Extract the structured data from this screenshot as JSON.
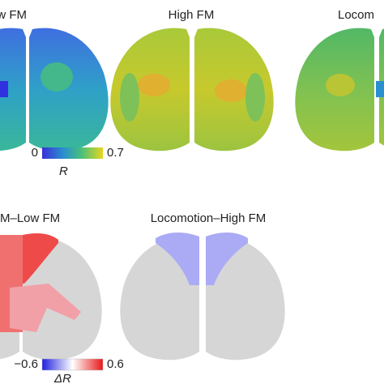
{
  "panels": [
    {
      "title": "ow FM"
    },
    {
      "title": "High FM"
    },
    {
      "title": "Locom"
    },
    {
      "title": "M–Low FM"
    },
    {
      "title": "Locomotion–High FM"
    }
  ],
  "colorbars": [
    {
      "label": "R",
      "ticks": [
        0,
        0.7
      ]
    },
    {
      "label": "ΔR",
      "ticks": [
        {
          "value": -0.6,
          "label": "−0.6"
        },
        0.6
      ]
    }
  ]
}
